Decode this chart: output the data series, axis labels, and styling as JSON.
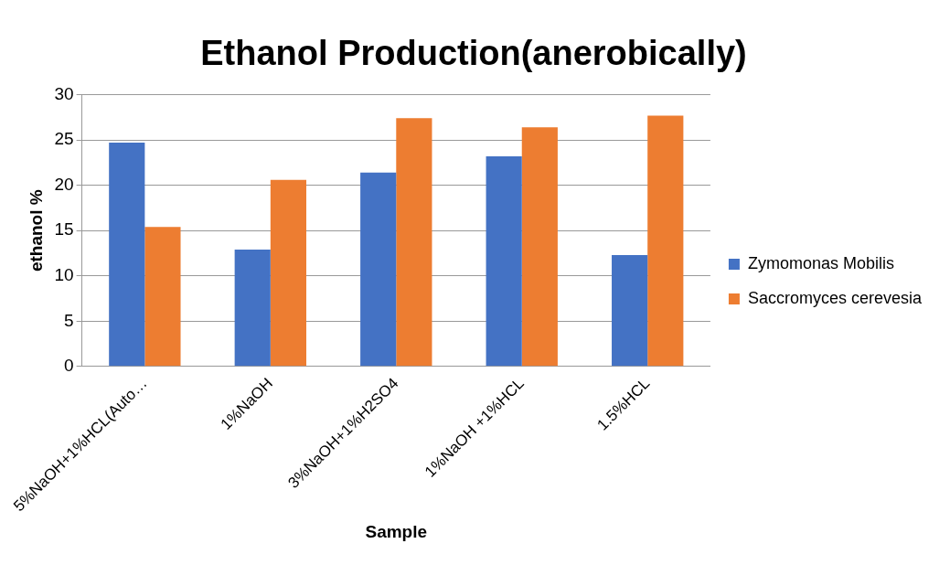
{
  "chart_data": {
    "type": "bar",
    "title": "Ethanol Production(anerobically)",
    "xlabel": "Sample",
    "ylabel": "ethanol %",
    "categories": [
      "5%NaOH+1%HCL(Auto…",
      "1%NaOH",
      "3%NaOH+1%H2SO4",
      "1%NaOH +1%HCL",
      "1.5%HCL"
    ],
    "series": [
      {
        "name": "Zymomonas Mobilis",
        "color": "#4472c4",
        "values": [
          24.7,
          12.9,
          21.4,
          23.2,
          12.3
        ]
      },
      {
        "name": "Saccromyces cerevesia",
        "color": "#ed7d31",
        "values": [
          15.4,
          20.6,
          27.4,
          26.4,
          27.7
        ]
      }
    ],
    "ylim": [
      0,
      30
    ],
    "yticks": [
      0,
      5,
      10,
      15,
      20,
      25,
      30
    ],
    "grid": "y",
    "legend": "right"
  }
}
